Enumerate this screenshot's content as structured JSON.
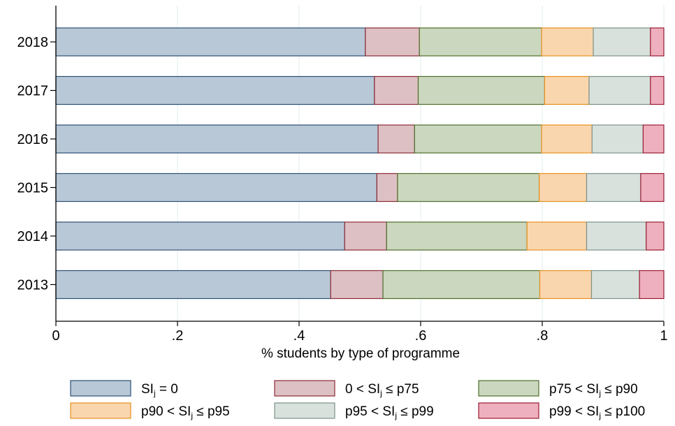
{
  "chart_data": {
    "type": "bar",
    "orientation": "horizontal",
    "stacked": true,
    "categories": [
      "2018",
      "2017",
      "2016",
      "2015",
      "2014",
      "2013"
    ],
    "series": [
      {
        "name": "SIⱼ = 0",
        "name_parts": [
          "SI",
          "j",
          " = 0"
        ],
        "color": "#b9c8d6",
        "stroke": "#2b4f77",
        "values": [
          0.509,
          0.524,
          0.53,
          0.528,
          0.475,
          0.452
        ]
      },
      {
        "name": "0 < SIⱼ ≤ p75",
        "name_parts": [
          "0 < SI",
          "j",
          " ≤ p75"
        ],
        "color": "#ddc0c4",
        "stroke": "#8c2a35",
        "values": [
          0.089,
          0.072,
          0.06,
          0.034,
          0.069,
          0.086
        ]
      },
      {
        "name": "p75 < SIⱼ ≤ p90",
        "name_parts": [
          "p75 < SI",
          "j",
          " ≤ p90"
        ],
        "color": "#cbd7be",
        "stroke": "#4e6f2c",
        "values": [
          0.201,
          0.208,
          0.209,
          0.233,
          0.231,
          0.258
        ]
      },
      {
        "name": "p90 < SIⱼ ≤ p95",
        "name_parts": [
          "p90 < SI",
          "j",
          " ≤ p95"
        ],
        "color": "#f9d6ae",
        "stroke": "#e8901e",
        "values": [
          0.085,
          0.073,
          0.083,
          0.078,
          0.098,
          0.085
        ]
      },
      {
        "name": "p95 < SIⱼ ≤ p99",
        "name_parts": [
          "p95 < SI",
          "j",
          " ≤ p99"
        ],
        "color": "#d8e1dc",
        "stroke": "#7d9189",
        "values": [
          0.094,
          0.101,
          0.084,
          0.089,
          0.098,
          0.079
        ]
      },
      {
        "name": "p99 < SIⱼ ≤ p100",
        "name_parts": [
          "p99 < SI",
          "j",
          " ≤ p100"
        ],
        "color": "#eeb0bf",
        "stroke": "#9a1c33",
        "values": [
          0.022,
          0.022,
          0.034,
          0.038,
          0.029,
          0.04
        ]
      }
    ],
    "xlabel": "% students by type of programme",
    "ylabel": "",
    "title": "",
    "xlim": [
      0,
      1
    ],
    "xticks": [
      0,
      0.2,
      0.4,
      0.6,
      0.8,
      1
    ],
    "xtick_labels": [
      "0",
      ".2",
      ".4",
      ".6",
      ".8",
      "1"
    ],
    "grid": "vertical",
    "legend_position": "bottom"
  }
}
